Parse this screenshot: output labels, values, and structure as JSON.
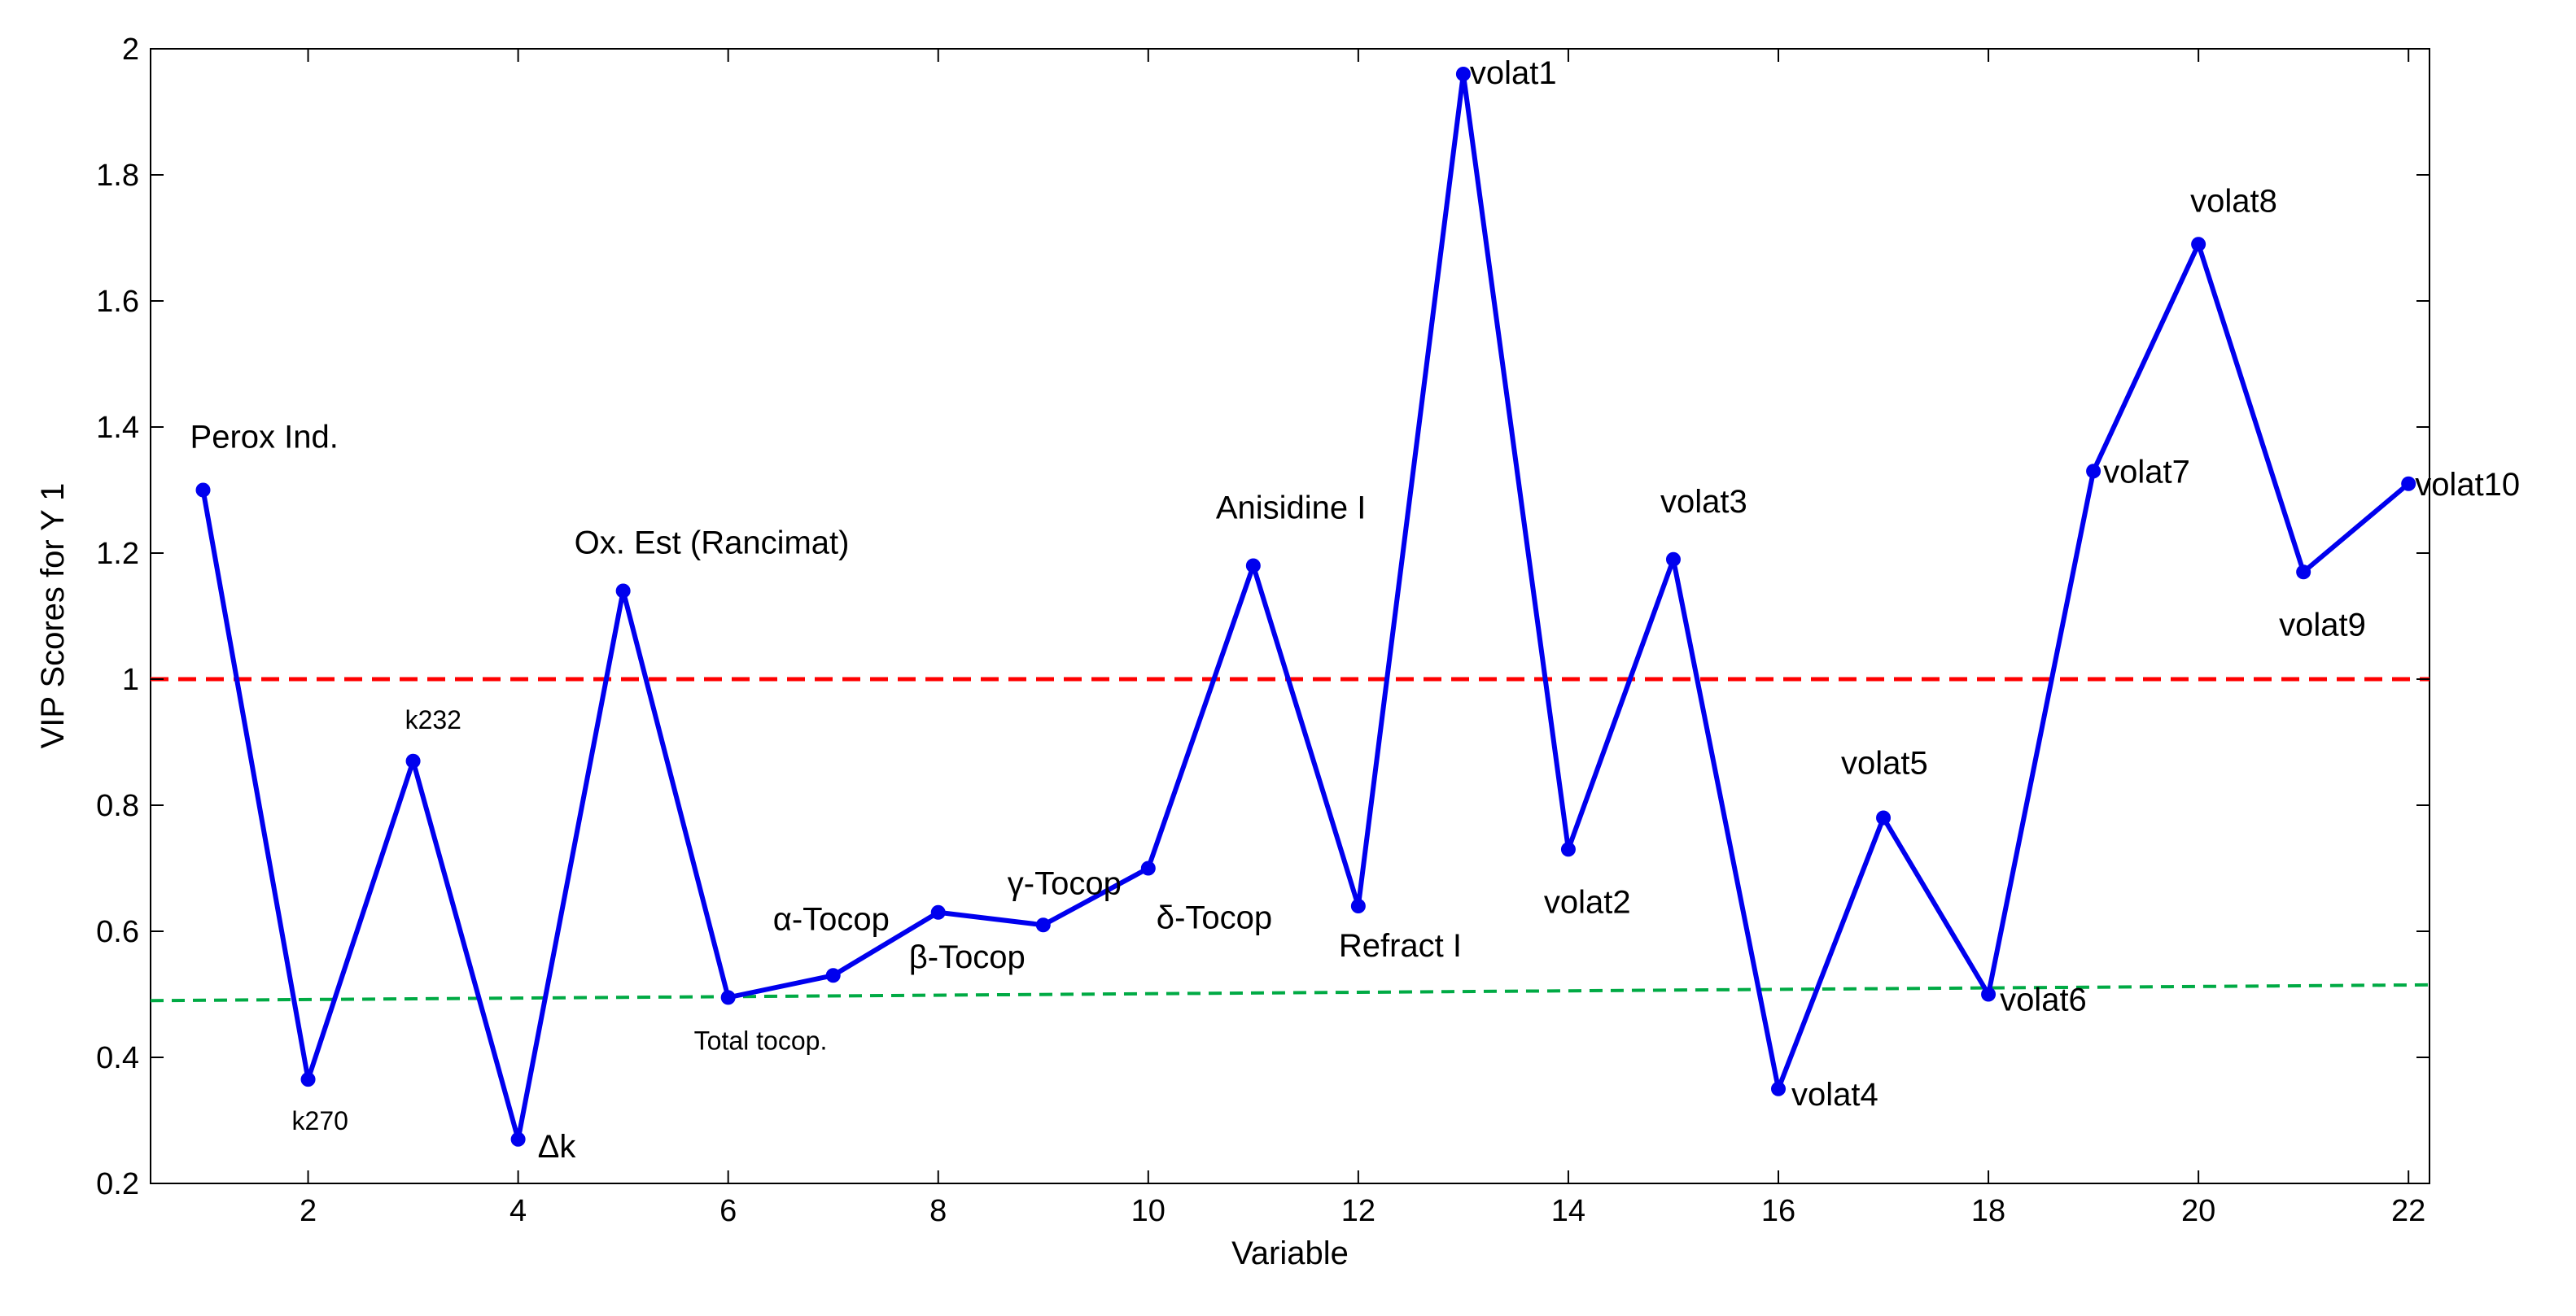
{
  "chart_data": {
    "type": "line",
    "xlabel": "Variable",
    "ylabel": "VIP Scores for Y 1",
    "xlim": [
      0.5,
      22.2
    ],
    "ylim": [
      0.2,
      2.0
    ],
    "xticks": [
      2,
      4,
      6,
      8,
      10,
      12,
      14,
      16,
      18,
      20,
      22
    ],
    "yticks": [
      0.2,
      0.4,
      0.6,
      0.8,
      1,
      1.2,
      1.4,
      1.6,
      1.8,
      2
    ],
    "grid": false,
    "series": [
      {
        "color": "#0000ee",
        "points": [
          {
            "x": 1,
            "y": 1.3,
            "label": "Perox Ind."
          },
          {
            "x": 2,
            "y": 0.365,
            "label": "k270"
          },
          {
            "x": 3,
            "y": 0.87,
            "label": "k232"
          },
          {
            "x": 4,
            "y": 0.27,
            "label": "Δk"
          },
          {
            "x": 5,
            "y": 1.14,
            "label": "Ox. Est (Rancimat)"
          },
          {
            "x": 6,
            "y": 0.495,
            "label": "Total tocop."
          },
          {
            "x": 7,
            "y": 0.53,
            "label": "α-Tocop"
          },
          {
            "x": 8,
            "y": 0.63,
            "label": "β-Tocop"
          },
          {
            "x": 9,
            "y": 0.61,
            "label": "γ-Tocop"
          },
          {
            "x": 10,
            "y": 0.7,
            "label": "δ-Tocop"
          },
          {
            "x": 11,
            "y": 1.18,
            "label": "Anisidine I"
          },
          {
            "x": 12,
            "y": 0.64,
            "label": "Refract I"
          },
          {
            "x": 13,
            "y": 1.96,
            "label": "volat1"
          },
          {
            "x": 14,
            "y": 0.73,
            "label": "volat2"
          },
          {
            "x": 15,
            "y": 1.19,
            "label": "volat3"
          },
          {
            "x": 16,
            "y": 0.35,
            "label": "volat4"
          },
          {
            "x": 17,
            "y": 0.78,
            "label": "volat5"
          },
          {
            "x": 18,
            "y": 0.5,
            "label": "volat6"
          },
          {
            "x": 19,
            "y": 1.33,
            "label": "volat7"
          },
          {
            "x": 20,
            "y": 1.69,
            "label": "volat8"
          },
          {
            "x": 21,
            "y": 1.17,
            "label": "volat9"
          },
          {
            "x": 22,
            "y": 1.31,
            "label": "volat10"
          }
        ]
      }
    ],
    "reference_lines": [
      {
        "color": "#ff0000",
        "style": "dashed",
        "from": {
          "x": 0.5,
          "y": 1.0
        },
        "to": {
          "x": 22.2,
          "y": 1.0
        }
      },
      {
        "color": "#00aa44",
        "style": "dashed",
        "from": {
          "x": 0.5,
          "y": 0.49
        },
        "to": {
          "x": 22.2,
          "y": 0.515
        }
      }
    ]
  }
}
